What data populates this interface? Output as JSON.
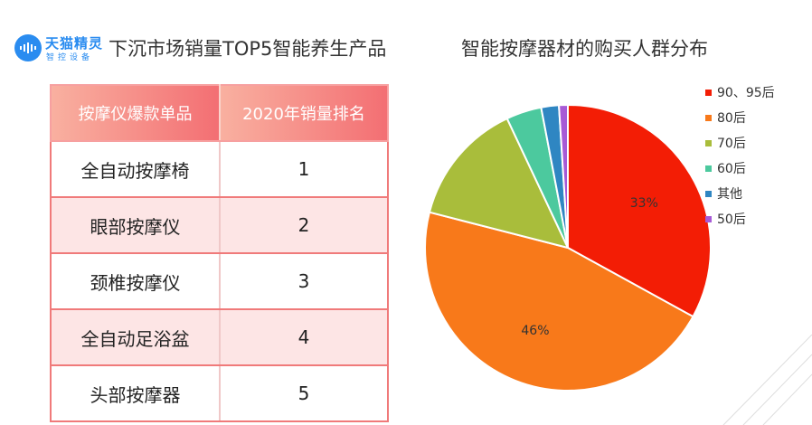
{
  "brand": {
    "name": "天猫精灵",
    "sub": "智控设备",
    "color": "#2a8cf0"
  },
  "left_title": "下沉市场销量TOP5智能养生产品",
  "right_title": "智能按摩器材的购买人群分布",
  "table": {
    "headers": [
      "按摩仪爆款单品",
      "2020年销量排名"
    ],
    "rows": [
      {
        "product": "全自动按摩椅",
        "rank": "1"
      },
      {
        "product": "眼部按摩仪",
        "rank": "2"
      },
      {
        "product": "颈椎按摩仪",
        "rank": "3"
      },
      {
        "product": "全自动足浴盆",
        "rank": "4"
      },
      {
        "product": "头部按摩器",
        "rank": "5"
      }
    ]
  },
  "chart_data": {
    "type": "pie",
    "title": "智能按摩器材的购买人群分布",
    "legend_position": "top-right",
    "series": [
      {
        "name": "90、95后",
        "value": 33,
        "label": "33%",
        "color": "#f31d05"
      },
      {
        "name": "80后",
        "value": 46,
        "label": "46%",
        "color": "#f8791a"
      },
      {
        "name": "70后",
        "value": 14,
        "label": "",
        "color": "#a9bd3b"
      },
      {
        "name": "60后",
        "value": 4,
        "label": "",
        "color": "#4cc99e"
      },
      {
        "name": "其他",
        "value": 2,
        "label": "",
        "color": "#2f86c2"
      },
      {
        "name": "50后",
        "value": 1,
        "label": "",
        "color": "#a75ad6"
      }
    ]
  }
}
